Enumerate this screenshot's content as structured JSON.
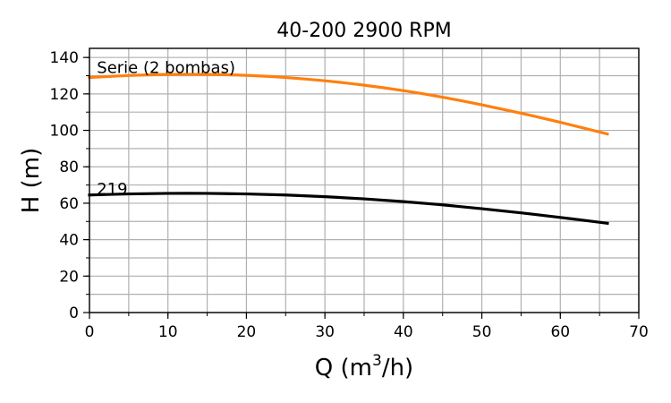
{
  "chart_data": {
    "type": "line",
    "title": "40-200 2900 RPM",
    "xlabel_main": "Q (m",
    "xlabel_sup": "3",
    "xlabel_tail": "/h)",
    "ylabel": "H (m)",
    "xlim": [
      0,
      70
    ],
    "ylim": [
      0,
      145
    ],
    "x_ticks": [
      0,
      10,
      20,
      30,
      40,
      50,
      60,
      70
    ],
    "y_ticks": [
      0,
      20,
      40,
      60,
      80,
      100,
      120,
      140
    ],
    "x_minor_step": 5,
    "y_minor_step": 10,
    "grid": true,
    "series": [
      {
        "name": "219",
        "color": "#000000",
        "x": [
          0,
          5,
          10,
          15,
          20,
          25,
          30,
          35,
          40,
          45,
          50,
          55,
          60,
          66
        ],
        "y": [
          64.5,
          65.1,
          65.4,
          65.4,
          65.1,
          64.5,
          63.6,
          62.4,
          60.9,
          59.1,
          57.0,
          54.7,
          52.2,
          49.0
        ]
      },
      {
        "name": "Serie (2 bombas)",
        "color": "#ff7f0e",
        "x": [
          0,
          5,
          10,
          15,
          20,
          25,
          30,
          35,
          40,
          45,
          50,
          55,
          60,
          66
        ],
        "y": [
          129.0,
          130.1,
          130.7,
          130.7,
          130.2,
          129.0,
          127.2,
          124.8,
          121.8,
          118.2,
          114.0,
          109.4,
          104.4,
          98.0
        ]
      }
    ],
    "annotations": [
      {
        "text": "Serie (2 bombas)",
        "x": 1,
        "y": 129.5
      },
      {
        "text": "219",
        "x": 1,
        "y": 63
      }
    ]
  }
}
